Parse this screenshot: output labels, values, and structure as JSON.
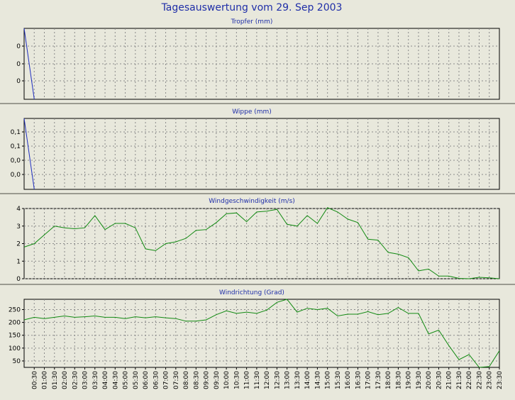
{
  "title": "Tagesauswertung vom 29. Sep 2003",
  "x_labels": [
    "00:30",
    "01:00",
    "01:30",
    "02:00",
    "02:30",
    "03:00",
    "03:30",
    "04:00",
    "04:30",
    "05:00",
    "05:30",
    "06:00",
    "06:30",
    "07:00",
    "07:30",
    "08:00",
    "08:30",
    "09:00",
    "09:30",
    "10:00",
    "10:30",
    "11:00",
    "11:30",
    "12:00",
    "12:30",
    "13:00",
    "13:30",
    "14:00",
    "14:30",
    "15:00",
    "15:30",
    "16:00",
    "16:30",
    "17:00",
    "17:30",
    "18:00",
    "18:30",
    "19:00",
    "19:30",
    "20:00",
    "20:30",
    "21:00",
    "21:30",
    "22:00",
    "22:30",
    "23:00",
    "23:30"
  ],
  "colors": {
    "title": "#1f2ea8",
    "blue_line": "#1f2ec0",
    "green_line": "#128a12"
  },
  "chart_data": [
    {
      "type": "line",
      "title": "Tropfer (mm)",
      "y_tick_labels": [
        "0",
        "0",
        "0"
      ],
      "ylim": [
        0,
        1
      ],
      "color": "#1f2ec0",
      "x": [
        0,
        0.5
      ],
      "values": [
        1.0,
        0
      ]
    },
    {
      "type": "line",
      "title": "Wippe (mm)",
      "y_tick_labels": [
        "0,1",
        "0,1",
        "0,0",
        "0,0"
      ],
      "ylim": [
        0,
        0.2
      ],
      "color": "#1f2ec0",
      "x": [
        0,
        0.5
      ],
      "values": [
        0.2,
        0
      ]
    },
    {
      "type": "line",
      "title": "Windgeschwindigkeit (m/s)",
      "y_tick_labels": [
        "0",
        "1",
        "2",
        "3",
        "4"
      ],
      "y_ticks": [
        0,
        1,
        2,
        3,
        4
      ],
      "ylim": [
        0,
        4
      ],
      "color": "#128a12",
      "x": [
        0,
        0.5,
        1,
        1.5,
        2,
        2.5,
        3,
        3.5,
        4,
        4.5,
        5,
        5.5,
        6,
        6.5,
        7,
        7.5,
        8,
        8.5,
        9,
        9.5,
        10,
        10.5,
        11,
        11.5,
        12,
        12.5,
        13,
        13.5,
        14,
        14.5,
        15,
        15.5,
        16,
        16.5,
        17,
        17.5,
        18,
        18.5,
        19,
        19.5,
        20,
        20.5,
        21,
        21.5,
        22,
        22.5,
        23,
        23.5
      ],
      "values": [
        1.8,
        2.0,
        2.5,
        3.0,
        2.9,
        2.85,
        2.9,
        3.6,
        2.8,
        3.15,
        3.15,
        2.9,
        1.7,
        1.6,
        2.0,
        2.1,
        2.3,
        2.75,
        2.8,
        3.2,
        3.7,
        3.75,
        3.25,
        3.8,
        3.85,
        3.95,
        3.1,
        3.0,
        3.6,
        3.15,
        4.05,
        3.8,
        3.4,
        3.2,
        2.25,
        2.2,
        1.5,
        1.4,
        1.2,
        0.45,
        0.55,
        0.15,
        0.15,
        0.02,
        0.0,
        0.08,
        0.05,
        0.0
      ]
    },
    {
      "type": "line",
      "title": "Windrichtung (Grad)",
      "y_tick_labels": [
        "50",
        "100",
        "150",
        "200",
        "250"
      ],
      "y_ticks": [
        50,
        100,
        150,
        200,
        250
      ],
      "ylim": [
        25,
        290
      ],
      "color": "#128a12",
      "x": [
        0,
        0.5,
        1,
        1.5,
        2,
        2.5,
        3,
        3.5,
        4,
        4.5,
        5,
        5.5,
        6,
        6.5,
        7,
        7.5,
        8,
        8.5,
        9,
        9.5,
        10,
        10.5,
        11,
        11.5,
        12,
        12.5,
        13,
        13.5,
        14,
        14.5,
        15,
        15.5,
        16,
        16.5,
        17,
        17.5,
        18,
        18.5,
        19,
        19.5,
        20,
        20.5,
        21,
        21.5,
        22,
        22.5,
        23,
        23.5
      ],
      "values": [
        210,
        220,
        215,
        220,
        225,
        220,
        222,
        225,
        220,
        220,
        215,
        222,
        218,
        222,
        218,
        215,
        205,
        205,
        210,
        230,
        245,
        235,
        240,
        235,
        248,
        278,
        290,
        240,
        255,
        250,
        255,
        225,
        232,
        232,
        242,
        230,
        235,
        258,
        235,
        235,
        155,
        170,
        110,
        55,
        75,
        25,
        28,
        90
      ]
    }
  ]
}
